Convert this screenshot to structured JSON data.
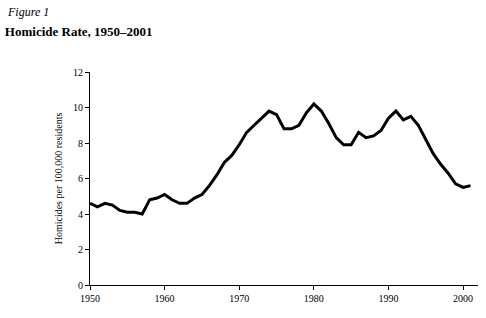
{
  "chart_data": {
    "type": "line",
    "title": "Homicide Rate, 1950–2001",
    "annotations": [
      "Figure 1"
    ],
    "y_label": "Homicides per 100,000 residents",
    "x": [
      1950,
      1951,
      1952,
      1953,
      1954,
      1955,
      1956,
      1957,
      1958,
      1959,
      1960,
      1961,
      1962,
      1963,
      1964,
      1965,
      1966,
      1967,
      1968,
      1969,
      1970,
      1971,
      1972,
      1973,
      1974,
      1975,
      1976,
      1977,
      1978,
      1979,
      1980,
      1981,
      1982,
      1983,
      1984,
      1985,
      1986,
      1987,
      1988,
      1989,
      1990,
      1991,
      1992,
      1993,
      1994,
      1995,
      1996,
      1997,
      1998,
      1999,
      2000,
      2001
    ],
    "values": [
      4.6,
      4.4,
      4.6,
      4.5,
      4.2,
      4.1,
      4.1,
      4.0,
      4.8,
      4.9,
      5.1,
      4.8,
      4.6,
      4.6,
      4.9,
      5.1,
      5.6,
      6.2,
      6.9,
      7.3,
      7.9,
      8.6,
      9.0,
      9.4,
      9.8,
      9.6,
      8.8,
      8.8,
      9.0,
      9.7,
      10.2,
      9.8,
      9.1,
      8.3,
      7.9,
      7.9,
      8.6,
      8.3,
      8.4,
      8.7,
      9.4,
      9.8,
      9.3,
      9.5,
      9.0,
      8.2,
      7.4,
      6.8,
      6.3,
      5.7,
      5.5,
      5.6
    ],
    "color": "#000000",
    "xlim": [
      1950,
      2002
    ],
    "xticks": [
      1950,
      1960,
      1970,
      1980,
      1990,
      2000
    ],
    "ylim": [
      0,
      12
    ],
    "yticks": [
      0,
      2,
      4,
      6,
      8,
      10,
      12
    ],
    "grid": false
  }
}
